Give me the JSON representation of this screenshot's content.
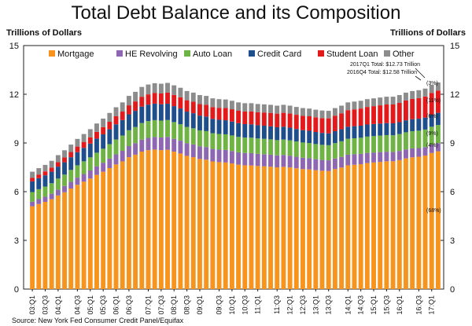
{
  "chart_data": {
    "type": "bar",
    "stacked": true,
    "title": "Total Debt Balance and its Composition",
    "ylabel_left": "Trillions of Dollars",
    "ylabel_right": "Trillions of Dollars",
    "ylim": [
      0,
      15
    ],
    "yticks": [
      "0",
      "3",
      "6",
      "9",
      "12",
      "15"
    ],
    "xtick_labels": [
      "03:Q1",
      "03:Q3",
      "04:Q1",
      "04:Q3",
      "05:Q1",
      "05:Q3",
      "06:Q1",
      "06:Q3",
      "07:Q1",
      "07:Q3",
      "08:Q1",
      "08:Q3",
      "09:Q1",
      "09:Q3",
      "10:Q1",
      "10:Q3",
      "11:Q1",
      "11:Q3",
      "12:Q1",
      "12:Q3",
      "13:Q1",
      "13:Q3",
      "14:Q1",
      "14:Q3",
      "15:Q1",
      "15:Q3",
      "16:Q1",
      "16:Q3",
      "17:Q1"
    ],
    "legend_position": "top",
    "grid": false,
    "totals": [
      7.23,
      7.45,
      7.65,
      7.9,
      8.25,
      8.55,
      8.9,
      9.25,
      9.55,
      9.85,
      10.2,
      10.5,
      10.85,
      11.2,
      11.5,
      11.9,
      12.15,
      12.45,
      12.6,
      12.68,
      12.65,
      12.7,
      12.55,
      12.4,
      12.2,
      12.1,
      11.95,
      11.9,
      11.75,
      11.7,
      11.68,
      11.6,
      11.5,
      11.45,
      11.45,
      11.4,
      11.38,
      11.35,
      11.3,
      11.35,
      11.3,
      11.22,
      11.15,
      11.12,
      11.05,
      11.0,
      10.98,
      11.15,
      11.3,
      11.5,
      11.55,
      11.6,
      11.7,
      11.75,
      11.8,
      11.85,
      11.85,
      11.95,
      12.1,
      12.2,
      12.25,
      12.35,
      12.58,
      12.73
    ],
    "shares": [
      {
        "name": "Mortgage",
        "color": "#f7941d",
        "base": 0.68
      },
      {
        "name": "HE Revolving",
        "color": "#8e67b3",
        "base": 0.05
      },
      {
        "name": "Auto Loan",
        "color": "#6fb344",
        "base": 0.095
      },
      {
        "name": "Credit Card",
        "color": "#1f4e8c",
        "base": 0.075
      },
      {
        "name": "Student Loan",
        "color": "#e31a1c",
        "base": 0.11
      },
      {
        "name": "Other",
        "color": "#8c8c8c",
        "base": 0.04
      }
    ],
    "annotations": {
      "q1_2017": "2017Q1 Total: $12.73 Trillion",
      "q4_2016": "2016Q4 Total: $12.58 Trillion"
    },
    "composition_labels": [
      "(3%)",
      "(11%)",
      "(6%)",
      "(9%)",
      "(4%)",
      "(68%)"
    ],
    "source": "Source: New York Fed Consumer Credit Panel/Equifax"
  }
}
